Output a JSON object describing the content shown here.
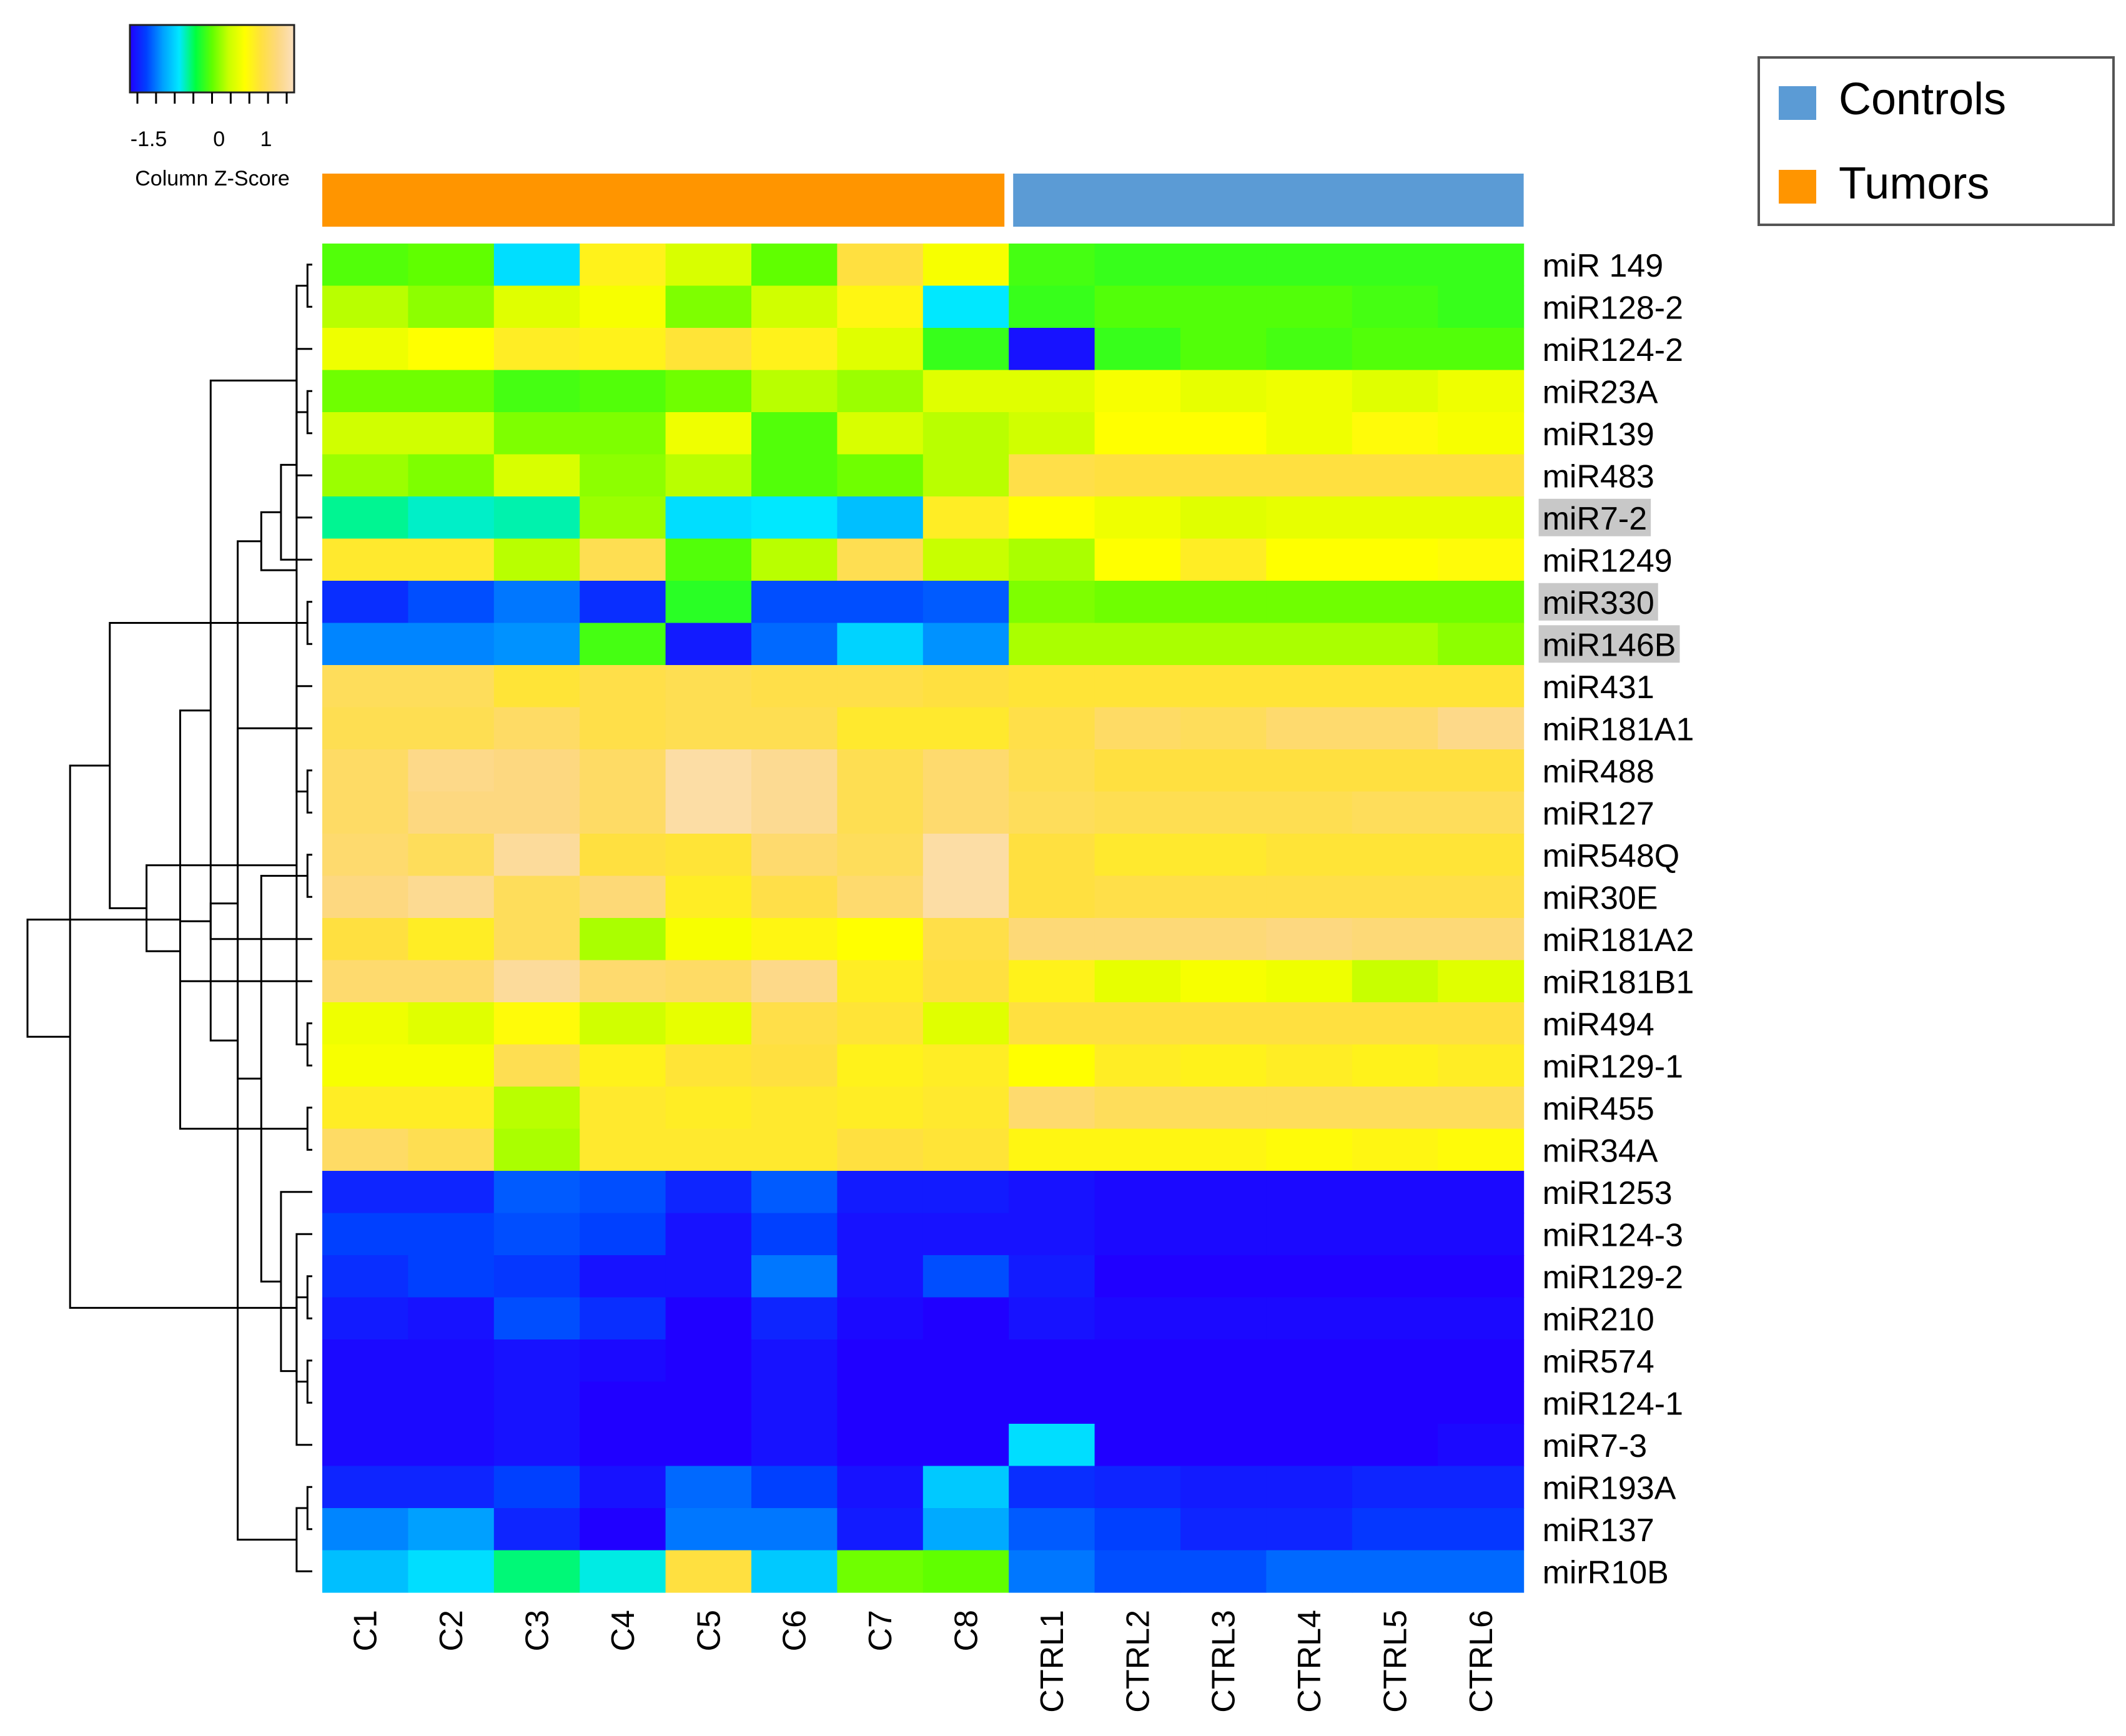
{
  "chart_data": {
    "type": "heatmap",
    "title": "",
    "color_key": {
      "title": "Column Z-Score",
      "ticks": [
        -1.5,
        0,
        1
      ],
      "tick_labels": [
        "-1.5",
        "0",
        "1"
      ],
      "range": [
        -1.9,
        1.6
      ],
      "gradient": [
        "#2000ff",
        "#0040ff",
        "#00a0ff",
        "#00e8ff",
        "#00ff40",
        "#60ff00",
        "#c8ff00",
        "#ffff00",
        "#ffe040",
        "#fdd880",
        "#fbe0c0"
      ]
    },
    "legend": {
      "position": "top-right",
      "items": [
        {
          "label": "Controls",
          "color": "#5b9bd5"
        },
        {
          "label": "Tumors",
          "color": "#ff9500"
        }
      ]
    },
    "columns": [
      "C1",
      "C2",
      "C3",
      "C4",
      "C5",
      "C6",
      "C7",
      "C8",
      "CTRL1",
      "CTRL2",
      "CTRL3",
      "CTRL4",
      "CTRL5",
      "CTRL6"
    ],
    "column_groups": [
      "Tumors",
      "Tumors",
      "Tumors",
      "Tumors",
      "Tumors",
      "Tumors",
      "Tumors",
      "Tumors",
      "Controls",
      "Controls",
      "Controls",
      "Controls",
      "Controls",
      "Controls"
    ],
    "rows": [
      "miR 149",
      "miR128-2",
      "miR124-2",
      "miR23A",
      "miR139",
      "miR483",
      "miR7-2",
      "miR1249",
      "miR330",
      "miR146B",
      "miR431",
      "miR181A1",
      "miR488",
      "miR127",
      "miR548Q",
      "miR30E",
      "miR181A2",
      "miR181B1",
      "miR494",
      "miR129-1",
      "miR455",
      "miR34A",
      "miR1253",
      "miR124-3",
      "miR129-2",
      "miR210",
      "miR574",
      "miR124-1",
      "miR7-3",
      "miR193A",
      "miR137",
      "mirR10B"
    ],
    "highlighted_rows": [
      "miR7-2",
      "miR330",
      "miR146B"
    ],
    "values": [
      [
        -0.2,
        -0.15,
        -0.9,
        0.7,
        0.3,
        -0.15,
        0.9,
        0.5,
        -0.25,
        -0.3,
        -0.3,
        -0.3,
        -0.3,
        -0.3
      ],
      [
        0.15,
        0.0,
        0.35,
        0.5,
        -0.05,
        0.25,
        0.65,
        -0.85,
        -0.3,
        -0.2,
        -0.2,
        -0.2,
        -0.25,
        -0.3
      ],
      [
        0.45,
        0.55,
        0.75,
        0.7,
        0.85,
        0.7,
        0.35,
        -0.3,
        -1.8,
        -0.3,
        -0.2,
        -0.25,
        -0.2,
        -0.2
      ],
      [
        -0.1,
        -0.1,
        -0.25,
        -0.2,
        -0.1,
        0.15,
        0.05,
        0.35,
        0.35,
        0.5,
        0.4,
        0.45,
        0.35,
        0.45
      ],
      [
        0.25,
        0.25,
        -0.05,
        -0.05,
        0.45,
        -0.2,
        0.3,
        0.15,
        0.25,
        0.55,
        0.55,
        0.45,
        0.6,
        0.5
      ],
      [
        0.05,
        -0.05,
        0.3,
        0.0,
        0.15,
        -0.2,
        -0.1,
        0.15,
        0.95,
        0.9,
        0.9,
        0.9,
        0.9,
        0.9
      ],
      [
        -0.65,
        -0.75,
        -0.7,
        0.05,
        -0.9,
        -0.85,
        -1.05,
        0.75,
        0.55,
        0.45,
        0.35,
        0.4,
        0.4,
        0.4
      ],
      [
        0.8,
        0.8,
        0.15,
        1.0,
        -0.2,
        0.15,
        1.0,
        0.2,
        0.1,
        0.55,
        0.75,
        0.55,
        0.55,
        0.6
      ],
      [
        -1.65,
        -1.5,
        -1.35,
        -1.65,
        -0.35,
        -1.5,
        -1.5,
        -1.45,
        -0.05,
        -0.1,
        -0.1,
        -0.1,
        -0.1,
        -0.1
      ],
      [
        -1.3,
        -1.3,
        -1.25,
        -0.25,
        -1.75,
        -1.4,
        -0.95,
        -1.25,
        0.1,
        0.1,
        0.1,
        0.1,
        0.1,
        0.0
      ],
      [
        1.05,
        1.05,
        0.85,
        0.95,
        1.0,
        0.95,
        0.95,
        0.9,
        0.85,
        0.85,
        0.85,
        0.85,
        0.85,
        0.85
      ],
      [
        1.0,
        1.0,
        1.1,
        0.95,
        1.0,
        1.0,
        0.8,
        0.8,
        0.95,
        1.1,
        1.05,
        1.15,
        1.15,
        1.3
      ],
      [
        1.1,
        1.3,
        1.25,
        1.1,
        1.45,
        1.35,
        1.0,
        1.15,
        1.0,
        0.9,
        0.9,
        0.9,
        0.9,
        0.9
      ],
      [
        1.1,
        1.25,
        1.25,
        1.1,
        1.45,
        1.35,
        1.0,
        1.15,
        1.05,
        1.0,
        1.0,
        1.0,
        1.05,
        1.05
      ],
      [
        1.15,
        1.05,
        1.4,
        0.9,
        0.85,
        1.15,
        1.05,
        1.45,
        0.9,
        0.8,
        0.8,
        0.85,
        0.85,
        0.85
      ],
      [
        1.25,
        1.35,
        1.05,
        1.2,
        0.75,
        0.95,
        1.15,
        1.45,
        0.9,
        0.95,
        0.95,
        0.95,
        0.95,
        0.95
      ],
      [
        0.9,
        0.75,
        1.05,
        0.1,
        0.5,
        0.65,
        0.55,
        0.95,
        1.2,
        1.2,
        1.2,
        1.25,
        1.2,
        1.2
      ],
      [
        1.15,
        1.15,
        1.4,
        1.15,
        1.1,
        1.3,
        0.75,
        0.9,
        0.7,
        0.4,
        0.5,
        0.45,
        0.2,
        0.35
      ],
      [
        0.45,
        0.35,
        0.6,
        0.25,
        0.4,
        0.95,
        0.85,
        0.35,
        0.9,
        0.9,
        0.9,
        0.9,
        0.9,
        0.9
      ],
      [
        0.5,
        0.5,
        1.0,
        0.7,
        0.85,
        0.9,
        0.7,
        0.75,
        0.55,
        0.75,
        0.7,
        0.75,
        0.7,
        0.75
      ],
      [
        0.75,
        0.75,
        0.15,
        0.8,
        0.75,
        0.8,
        0.75,
        0.8,
        1.15,
        1.05,
        1.05,
        1.05,
        1.05,
        1.05
      ],
      [
        1.1,
        1.0,
        0.1,
        0.8,
        0.8,
        0.8,
        0.9,
        0.85,
        0.65,
        0.65,
        0.65,
        0.6,
        0.65,
        0.6
      ],
      [
        -1.7,
        -1.7,
        -1.45,
        -1.5,
        -1.7,
        -1.45,
        -1.75,
        -1.75,
        -1.8,
        -1.85,
        -1.85,
        -1.85,
        -1.85,
        -1.85
      ],
      [
        -1.55,
        -1.55,
        -1.5,
        -1.55,
        -1.8,
        -1.55,
        -1.8,
        -1.8,
        -1.8,
        -1.85,
        -1.85,
        -1.85,
        -1.85,
        -1.85
      ],
      [
        -1.65,
        -1.55,
        -1.6,
        -1.8,
        -1.8,
        -1.35,
        -1.8,
        -1.5,
        -1.75,
        -1.9,
        -1.9,
        -1.9,
        -1.9,
        -1.9
      ],
      [
        -1.75,
        -1.8,
        -1.5,
        -1.65,
        -1.9,
        -1.7,
        -1.85,
        -1.9,
        -1.8,
        -1.85,
        -1.85,
        -1.85,
        -1.85,
        -1.85
      ],
      [
        -1.85,
        -1.85,
        -1.8,
        -1.85,
        -1.9,
        -1.8,
        -1.9,
        -1.95,
        -1.95,
        -1.95,
        -2.0,
        -2.0,
        -2.0,
        -2.0
      ],
      [
        -1.85,
        -1.85,
        -1.8,
        -2.0,
        -1.95,
        -1.8,
        -1.9,
        -1.9,
        -1.95,
        -1.95,
        -1.95,
        -1.95,
        -2.05,
        -2.05
      ],
      [
        -1.85,
        -1.85,
        -1.8,
        -1.95,
        -1.95,
        -1.8,
        -1.95,
        -2.0,
        -0.9,
        -1.95,
        -1.95,
        -1.95,
        -1.95,
        -1.85
      ],
      [
        -1.7,
        -1.7,
        -1.55,
        -1.8,
        -1.4,
        -1.55,
        -1.8,
        -1.0,
        -1.65,
        -1.7,
        -1.75,
        -1.75,
        -1.7,
        -1.7
      ],
      [
        -1.3,
        -1.2,
        -1.7,
        -1.95,
        -1.35,
        -1.35,
        -1.75,
        -1.15,
        -1.45,
        -1.55,
        -1.7,
        -1.7,
        -1.6,
        -1.6
      ],
      [
        -1.05,
        -0.9,
        -0.6,
        -0.8,
        0.9,
        -1.0,
        -0.1,
        -0.15,
        -1.35,
        -1.5,
        -1.5,
        -1.4,
        -1.4,
        -1.4
      ]
    ],
    "row_dendrogram": [
      [
        0,
        1
      ],
      [
        3,
        4
      ],
      [
        12,
        13
      ],
      [
        8,
        9
      ],
      [
        32,
        5
      ],
      [
        20,
        21
      ],
      [
        24,
        25
      ],
      [
        26,
        27
      ],
      [
        38,
        28
      ],
      [
        39,
        23
      ],
      [
        40,
        22
      ],
      [
        29,
        30
      ],
      [
        14,
        15
      ],
      [
        44,
        42
      ],
      [
        45,
        11
      ],
      [
        18,
        19
      ],
      [
        47,
        10
      ],
      [
        33,
        6
      ],
      [
        49,
        7
      ],
      [
        43,
        31
      ],
      [
        34,
        2
      ],
      [
        46,
        16
      ],
      [
        53,
        17
      ],
      [
        52,
        50
      ],
      [
        54,
        48
      ],
      [
        55,
        51
      ],
      [
        56,
        35
      ],
      [
        57,
        36
      ],
      [
        58,
        41
      ],
      [
        59,
        37
      ],
      [
        60,
        61
      ]
    ]
  }
}
